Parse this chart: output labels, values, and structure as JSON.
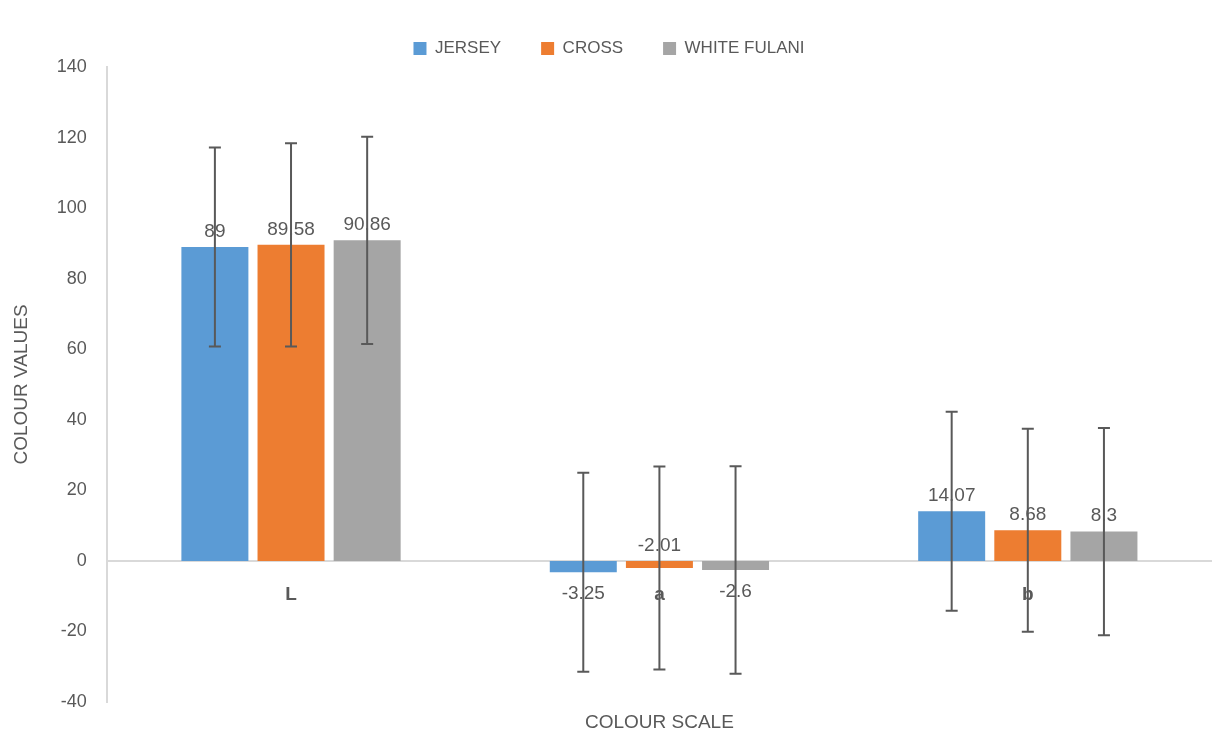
{
  "chart_data": {
    "type": "bar",
    "xlabel": "COLOUR SCALE",
    "ylabel": "COLOUR VALUES",
    "categories": [
      "L",
      "a",
      "b"
    ],
    "series": [
      {
        "name": "JERSEY",
        "color": "#5b9bd5",
        "values": [
          89,
          -3.25,
          14.07
        ],
        "errors": [
          28.2,
          28.2,
          28.2
        ]
      },
      {
        "name": "CROSS",
        "color": "#ed7d31",
        "values": [
          89.58,
          -2.01,
          8.68
        ],
        "errors": [
          28.8,
          28.8,
          28.8
        ]
      },
      {
        "name": "WHITE FULANI",
        "color": "#a5a5a5",
        "values": [
          90.86,
          -2.6,
          8.3
        ],
        "errors": [
          29.4,
          29.4,
          29.4
        ]
      }
    ],
    "ylim": [
      -40,
      140
    ],
    "yticks": [
      -40,
      -20,
      0,
      20,
      40,
      60,
      80,
      100,
      120,
      140
    ],
    "grid": false,
    "legend": "top",
    "data_labels": true
  }
}
